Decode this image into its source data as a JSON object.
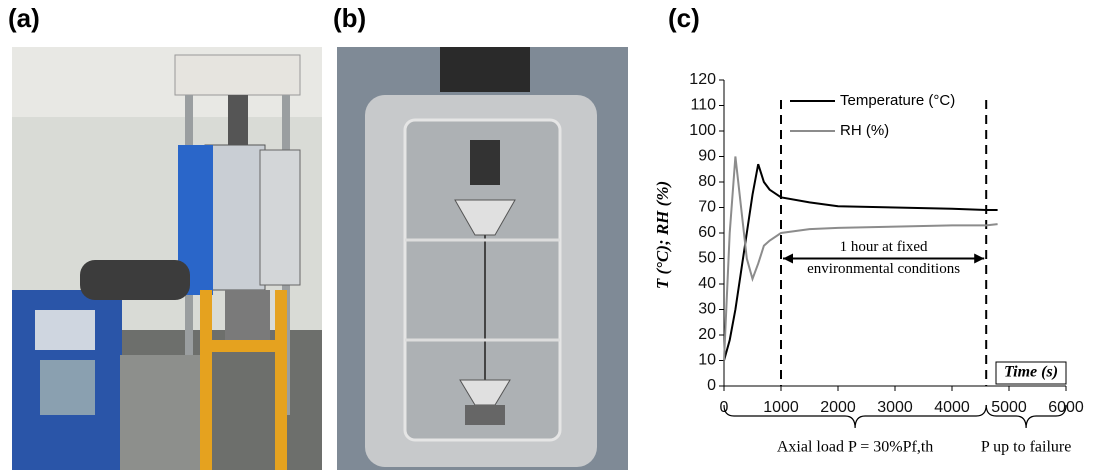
{
  "panel_labels": [
    "(a)",
    "(b)",
    "(c)"
  ],
  "chart_data": {
    "type": "line",
    "y_label": "T (°C);  RH (%)",
    "x_label": "Time (s)",
    "x": [
      0,
      100,
      200,
      300,
      400,
      500,
      600,
      700,
      800,
      1000,
      1500,
      2000,
      3000,
      4000,
      4600,
      4800
    ],
    "series": [
      {
        "name": "Temperature (°C)",
        "color": "#000000",
        "values": [
          10,
          18,
          30,
          45,
          60,
          75,
          87,
          80,
          77,
          74,
          72,
          70.5,
          70,
          69.5,
          69,
          69
        ]
      },
      {
        "name": "RH (%)",
        "color": "#8c8c8c",
        "values": [
          10,
          60,
          90,
          70,
          50,
          42,
          48,
          55,
          57,
          60,
          61.5,
          62,
          62.5,
          63,
          63,
          63.5
        ]
      }
    ],
    "xlim": [
      0,
      6000
    ],
    "xticks": [
      0,
      1000,
      2000,
      3000,
      4000,
      5000,
      6000
    ],
    "ylim": [
      0,
      120
    ],
    "yticks": [
      0,
      10,
      20,
      30,
      40,
      50,
      60,
      70,
      80,
      90,
      100,
      110,
      120
    ],
    "grid": false,
    "vlines": [
      1000,
      4600
    ],
    "annotation": {
      "lines": [
        "1 hour at fixed",
        "environmental conditions"
      ],
      "y": 50
    },
    "phases": [
      {
        "label": "Axial load P = 30%Pf,th",
        "start": 0,
        "end": 4600
      },
      {
        "label": "P  up to failure",
        "start": 4600,
        "end": 6000
      }
    ]
  }
}
